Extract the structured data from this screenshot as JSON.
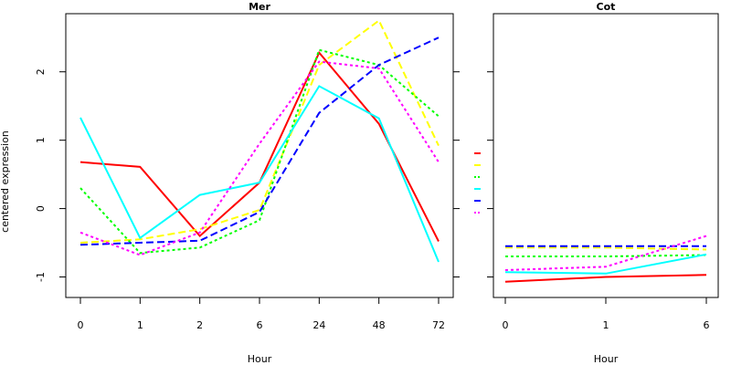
{
  "chart_data": [
    {
      "type": "line",
      "title": "Mer",
      "xlabel": "Hour",
      "ylabel": "centered expression",
      "categories": [
        "0",
        "1",
        "2",
        "6",
        "24",
        "48",
        "72"
      ],
      "yticks": [
        "-1",
        "0",
        "1",
        "2"
      ],
      "ylim": [
        -1.3,
        2.85
      ],
      "series": [
        {
          "color": "#ff0000",
          "dash": "solid",
          "values": [
            0.68,
            0.61,
            -0.4,
            0.38,
            2.28,
            1.24,
            -0.48
          ]
        },
        {
          "color": "#ffff00",
          "dash": "long",
          "values": [
            -0.5,
            -0.45,
            -0.3,
            -0.02,
            2.1,
            2.75,
            0.92
          ]
        },
        {
          "color": "#00ff00",
          "dash": "dot",
          "values": [
            0.3,
            -0.65,
            -0.57,
            -0.17,
            2.32,
            2.1,
            1.35
          ]
        },
        {
          "color": "#00ffff",
          "dash": "solid",
          "values": [
            1.33,
            -0.43,
            0.2,
            0.38,
            1.79,
            1.32,
            -0.78
          ]
        },
        {
          "color": "#0000ff",
          "dash": "long",
          "values": [
            -0.53,
            -0.5,
            -0.47,
            -0.05,
            1.4,
            2.1,
            2.5
          ]
        },
        {
          "color": "#ff00ff",
          "dash": "dot",
          "values": [
            -0.35,
            -0.68,
            -0.35,
            0.95,
            2.15,
            2.05,
            0.68
          ]
        }
      ]
    },
    {
      "type": "line",
      "title": "Cot",
      "xlabel": "Hour",
      "ylabel": "",
      "categories": [
        "0",
        "1",
        "6"
      ],
      "ylim": [
        -1.3,
        2.85
      ],
      "series": [
        {
          "color": "#ff0000",
          "dash": "solid",
          "values": [
            -1.07,
            -1.0,
            -0.97
          ]
        },
        {
          "color": "#ffff00",
          "dash": "long",
          "values": [
            -0.57,
            -0.57,
            -0.6
          ]
        },
        {
          "color": "#00ff00",
          "dash": "dot",
          "values": [
            -0.7,
            -0.7,
            -0.68
          ]
        },
        {
          "color": "#00ffff",
          "dash": "solid",
          "values": [
            -0.93,
            -0.95,
            -0.67
          ]
        },
        {
          "color": "#0000ff",
          "dash": "long",
          "values": [
            -0.55,
            -0.55,
            -0.55
          ]
        },
        {
          "color": "#ff00ff",
          "dash": "dot",
          "values": [
            -0.9,
            -0.85,
            -0.4
          ]
        }
      ]
    }
  ],
  "legend": {
    "position": "between panels",
    "entries": [
      {
        "color": "#ff0000",
        "dash": "solid"
      },
      {
        "color": "#ffff00",
        "dash": "long"
      },
      {
        "color": "#00ff00",
        "dash": "dot"
      },
      {
        "color": "#00ffff",
        "dash": "solid"
      },
      {
        "color": "#0000ff",
        "dash": "long"
      },
      {
        "color": "#ff00ff",
        "dash": "dot"
      }
    ]
  }
}
